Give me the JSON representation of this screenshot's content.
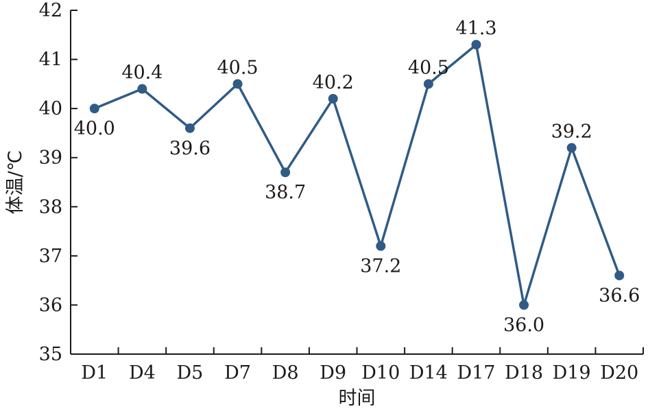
{
  "chart_data": {
    "type": "line",
    "xlabel": "时间",
    "ylabel": "体温/℃",
    "ylim": [
      35,
      42
    ],
    "yticks": [
      35,
      36,
      37,
      38,
      39,
      40,
      41,
      42
    ],
    "grid": false,
    "categories": [
      "D1",
      "D4",
      "D5",
      "D7",
      "D8",
      "D9",
      "D10",
      "D14",
      "D17",
      "D18",
      "D19",
      "D20"
    ],
    "series": [
      {
        "values": [
          40.0,
          40.4,
          39.6,
          40.5,
          38.7,
          40.2,
          37.2,
          40.5,
          41.3,
          36.0,
          39.2,
          36.6
        ],
        "color": "#2f5b86"
      }
    ],
    "data_labels": [
      "40.0",
      "40.4",
      "39.6",
      "40.5",
      "38.7",
      "40.2",
      "37.2",
      "40.5",
      "41.3",
      "36.0",
      "39.2",
      "36.6"
    ],
    "label_positions": [
      "below",
      "above",
      "below",
      "above",
      "below",
      "above",
      "below",
      "above",
      "above",
      "below",
      "above",
      "below"
    ]
  }
}
